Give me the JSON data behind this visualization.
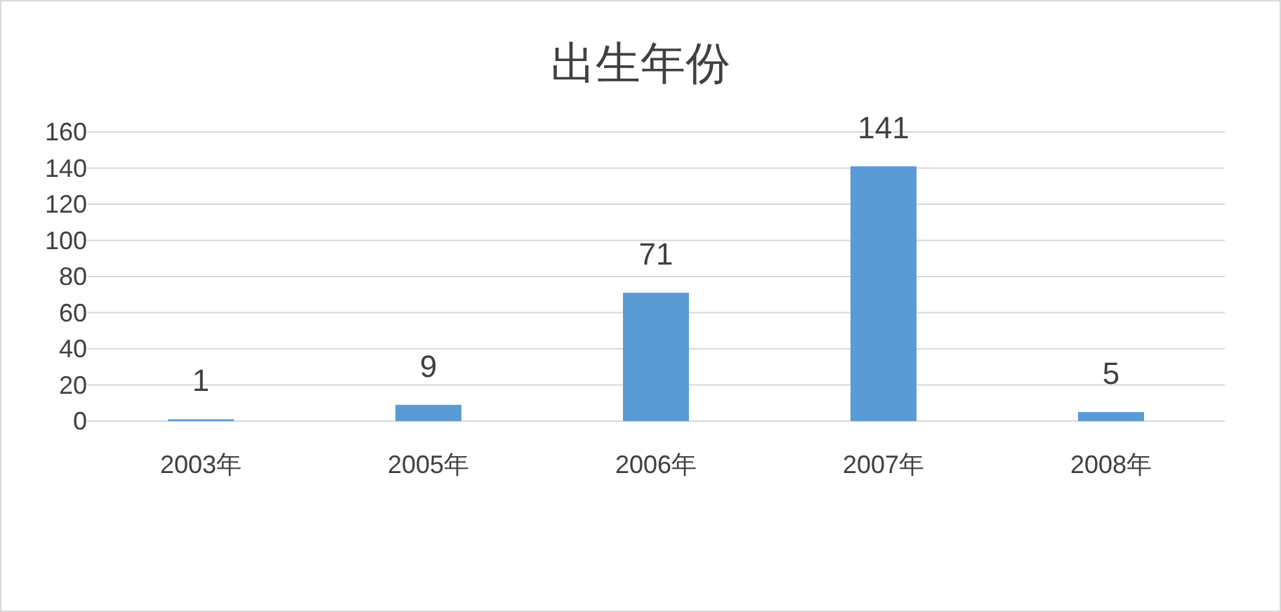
{
  "chart_data": {
    "type": "bar",
    "title": "出生年份",
    "categories": [
      "2003年",
      "2005年",
      "2006年",
      "2007年",
      "2008年"
    ],
    "values": [
      1,
      9,
      71,
      141,
      5
    ],
    "color": "#5b9bd5",
    "ylim": [
      0,
      160
    ],
    "yticks": [
      0,
      20,
      40,
      60,
      80,
      100,
      120,
      140,
      160
    ],
    "grid": "y",
    "data_labels": true
  }
}
